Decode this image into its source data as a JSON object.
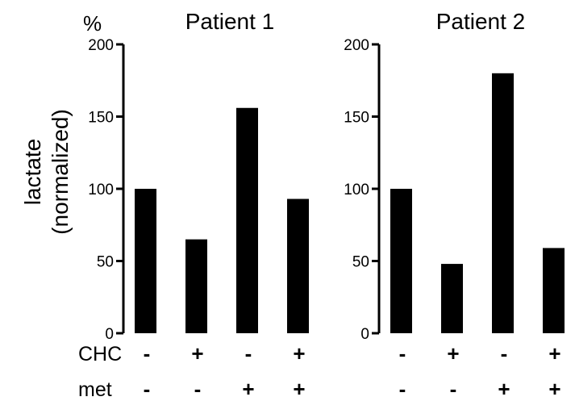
{
  "figure": {
    "unit": "%",
    "ylabel_line1": "lactate",
    "ylabel_line2": "(normalized)",
    "row_labels": [
      "CHC",
      "met"
    ],
    "treatments": {
      "CHC": [
        "-",
        "+",
        "-",
        "+"
      ],
      "met": [
        "-",
        "-",
        "+",
        "+"
      ]
    }
  },
  "chart_data": [
    {
      "type": "bar",
      "title": "Patient 1",
      "categories": [
        "CHC- met-",
        "CHC+ met-",
        "CHC- met+",
        "CHC+ met+"
      ],
      "values": [
        100,
        65,
        156,
        93
      ],
      "ylabel": "lactate (normalized)",
      "ylim": [
        0,
        200
      ],
      "yticks": [
        0,
        50,
        100,
        150,
        200
      ],
      "grid": false,
      "color": "#000000"
    },
    {
      "type": "bar",
      "title": "Patient 2",
      "categories": [
        "CHC- met-",
        "CHC+ met-",
        "CHC- met+",
        "CHC+ met+"
      ],
      "values": [
        100,
        48,
        180,
        59
      ],
      "ylabel": "lactate (normalized)",
      "ylim": [
        0,
        200
      ],
      "yticks": [
        0,
        50,
        100,
        150,
        200
      ],
      "grid": false,
      "color": "#000000"
    }
  ]
}
